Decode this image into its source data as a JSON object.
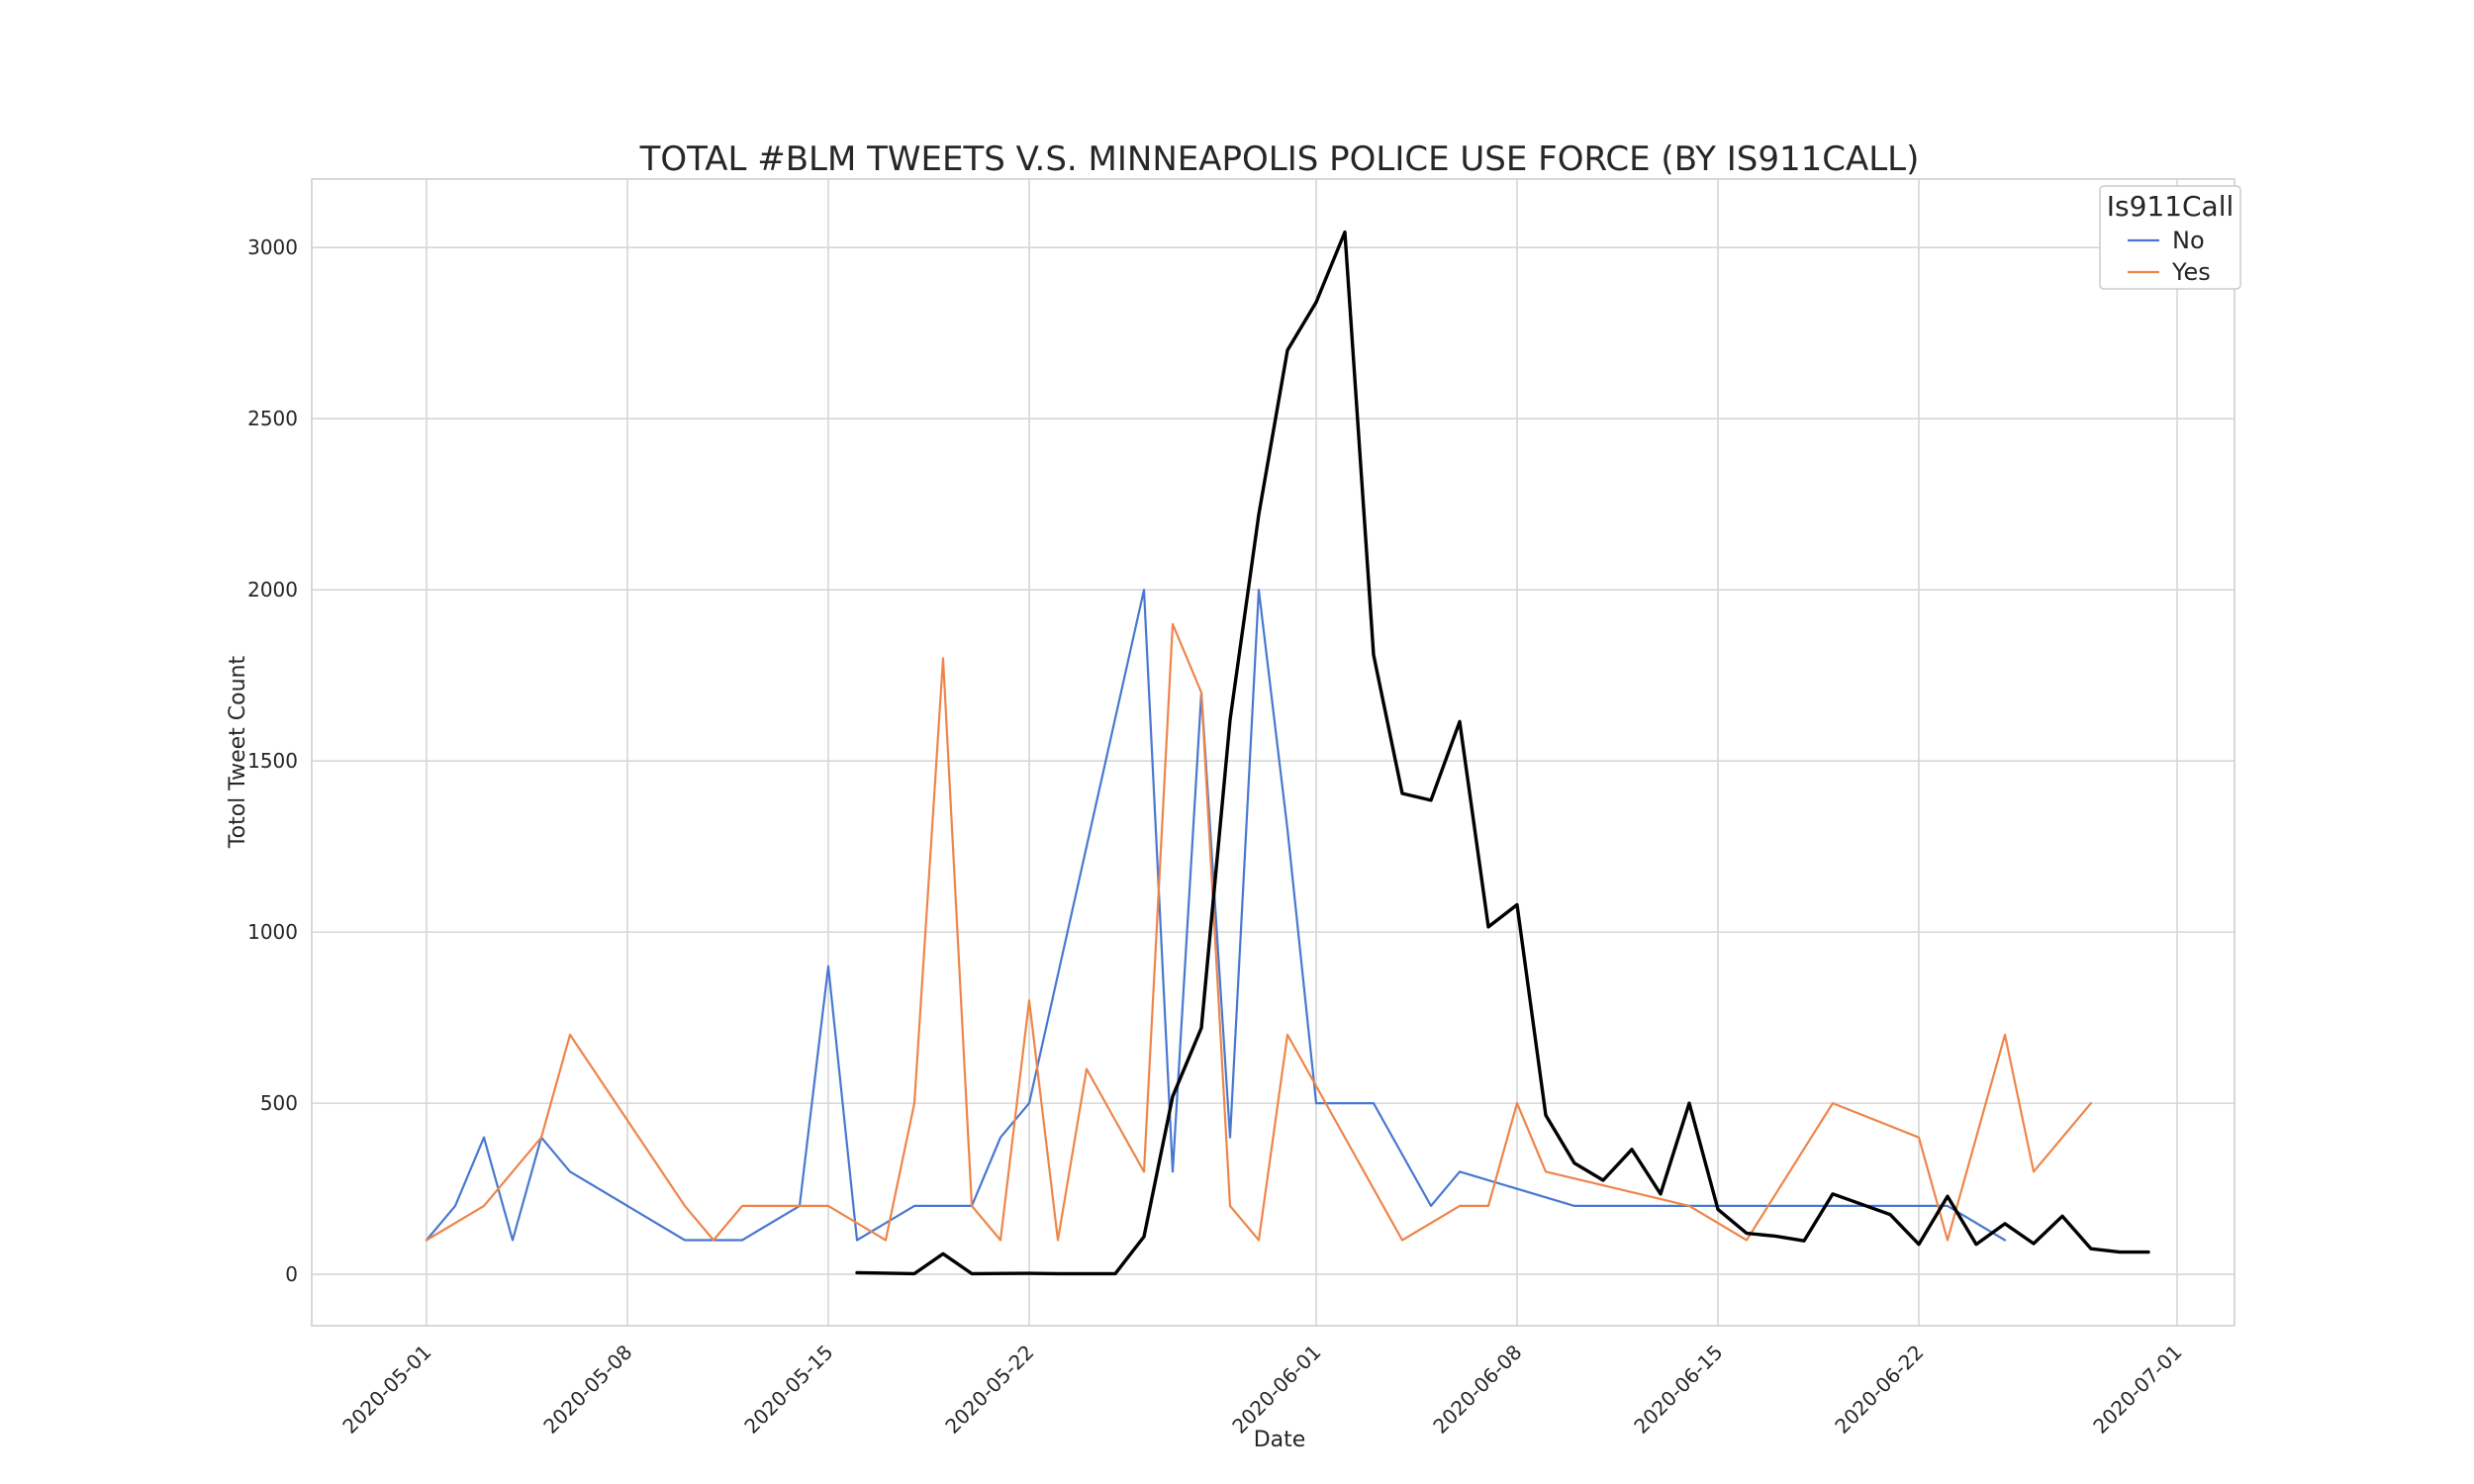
{
  "chart_data": {
    "type": "line",
    "title": "TOTAL #BLM TWEETS V.S. MINNEAPOLIS POLICE USE FORCE (BY IS911CALL)",
    "xlabel": "Date",
    "ylabel": "Totol Tweet Count",
    "xlim": [
      "2020-04-27",
      "2020-07-03"
    ],
    "ylim": [
      -150,
      3200
    ],
    "x_ticks": [
      "2020-05-01",
      "2020-05-08",
      "2020-05-15",
      "2020-05-22",
      "2020-06-01",
      "2020-06-08",
      "2020-06-15",
      "2020-06-22",
      "2020-07-01"
    ],
    "y_ticks": [
      0,
      500,
      1000,
      1500,
      2000,
      2500,
      3000
    ],
    "grid": true,
    "legend": {
      "title": "Is911Call",
      "placement": "top-right",
      "entries": [
        "No",
        "Yes"
      ]
    },
    "colors": {
      "No": "#4878d0",
      "Yes": "#ee854a",
      "tweets": "#000000"
    },
    "series": [
      {
        "name": "No",
        "color": "#4878d0",
        "points": [
          [
            "2020-05-01",
            100
          ],
          [
            "2020-05-02",
            200
          ],
          [
            "2020-05-03",
            400
          ],
          [
            "2020-05-04",
            100
          ],
          [
            "2020-05-05",
            400
          ],
          [
            "2020-05-06",
            300
          ],
          [
            "2020-05-10",
            100
          ],
          [
            "2020-05-11",
            100
          ],
          [
            "2020-05-12",
            100
          ],
          [
            "2020-05-14",
            200
          ],
          [
            "2020-05-15",
            900
          ],
          [
            "2020-05-16",
            100
          ],
          [
            "2020-05-18",
            200
          ],
          [
            "2020-05-20",
            200
          ],
          [
            "2020-05-21",
            400
          ],
          [
            "2020-05-22",
            500
          ],
          [
            "2020-05-26",
            2000
          ],
          [
            "2020-05-27",
            300
          ],
          [
            "2020-05-28",
            1700
          ],
          [
            "2020-05-29",
            400
          ],
          [
            "2020-05-30",
            2000
          ],
          [
            "2020-05-31",
            1300
          ],
          [
            "2020-06-01",
            500
          ],
          [
            "2020-06-02",
            500
          ],
          [
            "2020-06-03",
            500
          ],
          [
            "2020-06-05",
            200
          ],
          [
            "2020-06-06",
            300
          ],
          [
            "2020-06-10",
            200
          ],
          [
            "2020-06-15",
            200
          ],
          [
            "2020-06-22",
            200
          ],
          [
            "2020-06-23",
            200
          ],
          [
            "2020-06-25",
            100
          ]
        ]
      },
      {
        "name": "Yes",
        "color": "#ee854a",
        "points": [
          [
            "2020-05-01",
            100
          ],
          [
            "2020-05-03",
            200
          ],
          [
            "2020-05-05",
            400
          ],
          [
            "2020-05-06",
            700
          ],
          [
            "2020-05-10",
            200
          ],
          [
            "2020-05-11",
            100
          ],
          [
            "2020-05-12",
            200
          ],
          [
            "2020-05-15",
            200
          ],
          [
            "2020-05-17",
            100
          ],
          [
            "2020-05-18",
            500
          ],
          [
            "2020-05-19",
            1800
          ],
          [
            "2020-05-20",
            200
          ],
          [
            "2020-05-21",
            100
          ],
          [
            "2020-05-22",
            800
          ],
          [
            "2020-05-23",
            100
          ],
          [
            "2020-05-24",
            600
          ],
          [
            "2020-05-26",
            300
          ],
          [
            "2020-05-27",
            1900
          ],
          [
            "2020-05-28",
            1700
          ],
          [
            "2020-05-29",
            200
          ],
          [
            "2020-05-30",
            100
          ],
          [
            "2020-05-31",
            700
          ],
          [
            "2020-06-04",
            100
          ],
          [
            "2020-06-06",
            200
          ],
          [
            "2020-06-07",
            200
          ],
          [
            "2020-06-08",
            500
          ],
          [
            "2020-06-09",
            300
          ],
          [
            "2020-06-14",
            200
          ],
          [
            "2020-06-16",
            100
          ],
          [
            "2020-06-19",
            500
          ],
          [
            "2020-06-22",
            400
          ],
          [
            "2020-06-23",
            100
          ],
          [
            "2020-06-25",
            700
          ],
          [
            "2020-06-26",
            300
          ],
          [
            "2020-06-28",
            500
          ]
        ]
      },
      {
        "color": "#000000",
        "points": [
          [
            "2020-05-16",
            5
          ],
          [
            "2020-05-18",
            2
          ],
          [
            "2020-05-19",
            60
          ],
          [
            "2020-05-20",
            2
          ],
          [
            "2020-05-22",
            3
          ],
          [
            "2020-05-23",
            2
          ],
          [
            "2020-05-25",
            2
          ],
          [
            "2020-05-26",
            110
          ],
          [
            "2020-05-27",
            520
          ],
          [
            "2020-05-28",
            720
          ],
          [
            "2020-05-29",
            1620
          ],
          [
            "2020-05-30",
            2220
          ],
          [
            "2020-05-31",
            2700
          ],
          [
            "2020-06-01",
            2840
          ],
          [
            "2020-06-02",
            3045
          ],
          [
            "2020-06-03",
            1810
          ],
          [
            "2020-06-04",
            1405
          ],
          [
            "2020-06-05",
            1385
          ],
          [
            "2020-06-06",
            1615
          ],
          [
            "2020-06-07",
            1015
          ],
          [
            "2020-06-08",
            1080
          ],
          [
            "2020-06-09",
            465
          ],
          [
            "2020-06-10",
            325
          ],
          [
            "2020-06-11",
            275
          ],
          [
            "2020-06-12",
            365
          ],
          [
            "2020-06-13",
            235
          ],
          [
            "2020-06-14",
            500
          ],
          [
            "2020-06-15",
            190
          ],
          [
            "2020-06-16",
            120
          ],
          [
            "2020-06-17",
            112
          ],
          [
            "2020-06-18",
            98
          ],
          [
            "2020-06-19",
            235
          ],
          [
            "2020-06-20",
            205
          ],
          [
            "2020-06-21",
            175
          ],
          [
            "2020-06-22",
            88
          ],
          [
            "2020-06-23",
            228
          ],
          [
            "2020-06-24",
            88
          ],
          [
            "2020-06-25",
            148
          ],
          [
            "2020-06-26",
            90
          ],
          [
            "2020-06-27",
            170
          ],
          [
            "2020-06-28",
            75
          ],
          [
            "2020-06-29",
            65
          ],
          [
            "2020-06-30",
            65
          ]
        ]
      }
    ]
  }
}
